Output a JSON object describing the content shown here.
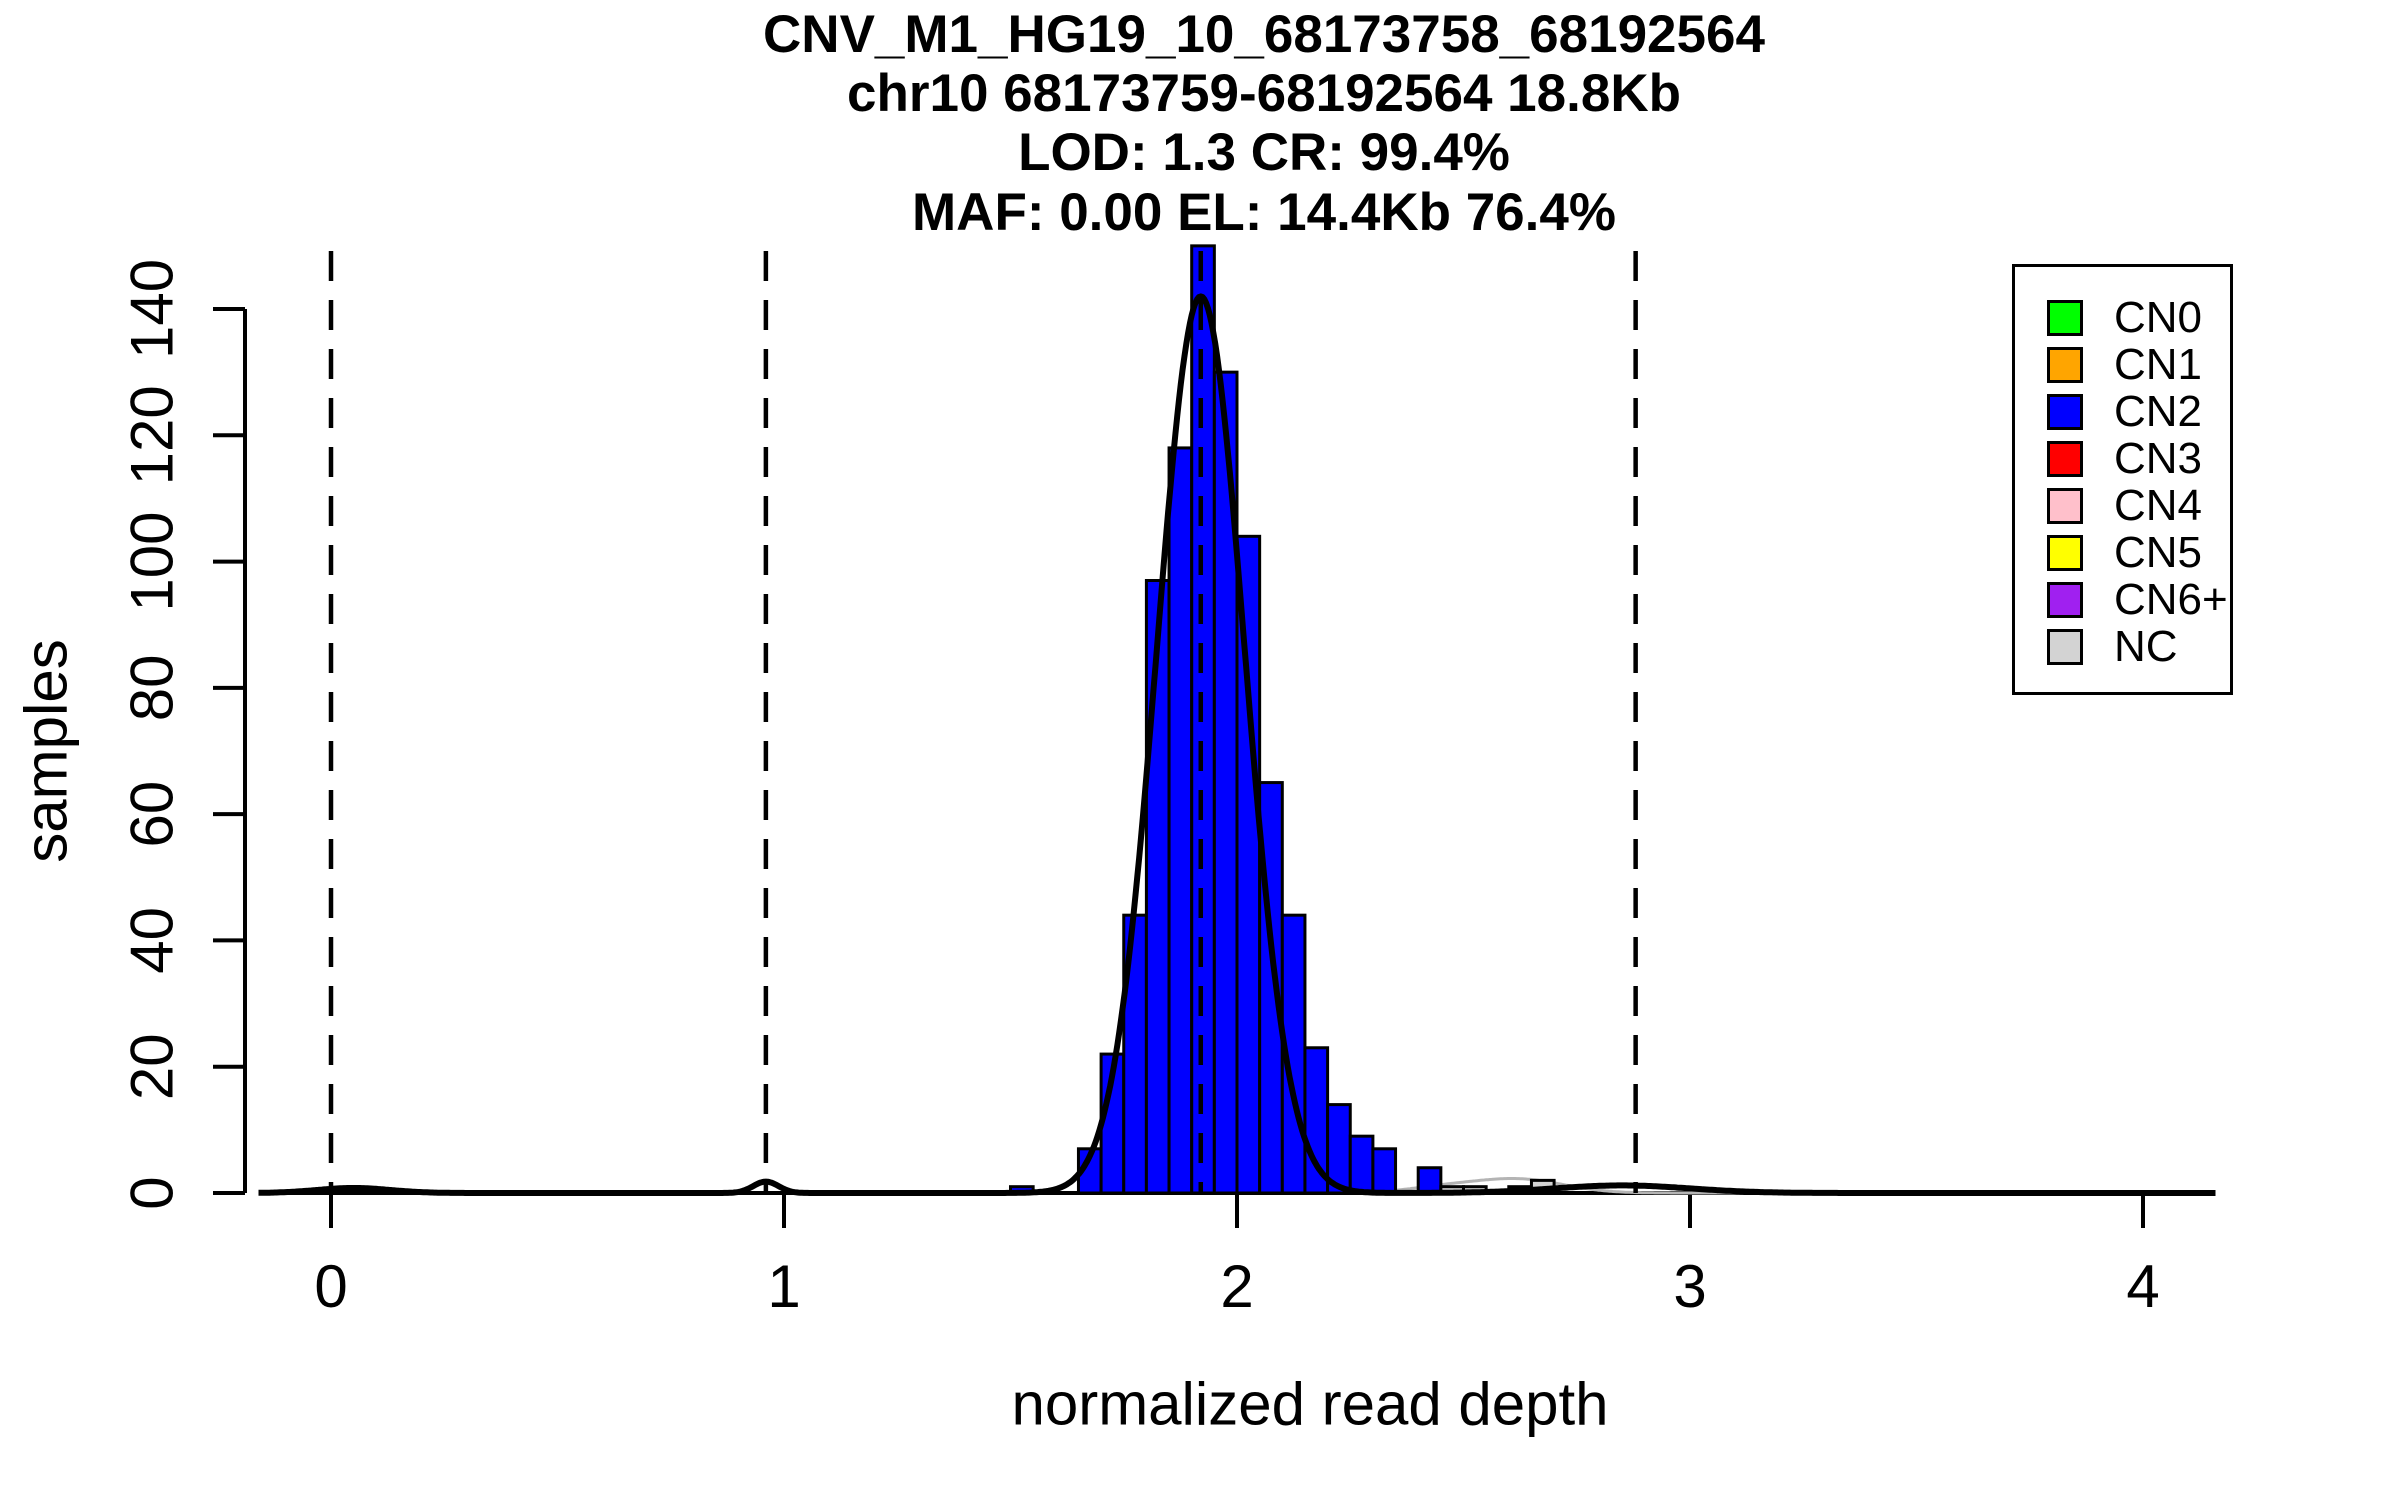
{
  "title": {
    "line1": "CNV_M1_HG19_10_68173758_68192564",
    "line2": "chr10 68173759-68192564 18.8Kb",
    "line3": "LOD: 1.3 CR: 99.4%",
    "line4": "MAF: 0.00 EL: 14.4Kb 76.4%"
  },
  "axes": {
    "x_label": "normalized read depth",
    "y_label": "samples",
    "x_tick_labels": [
      "0",
      "1",
      "2",
      "3",
      "4"
    ],
    "y_tick_labels": [
      "0",
      "20",
      "40",
      "60",
      "80",
      "100",
      "120",
      "140"
    ]
  },
  "legend": {
    "items": [
      {
        "label": "CN0",
        "color": "#00FF00"
      },
      {
        "label": "CN1",
        "color": "#FFA500"
      },
      {
        "label": "CN2",
        "color": "#0000FF"
      },
      {
        "label": "CN3",
        "color": "#FF0000"
      },
      {
        "label": "CN4",
        "color": "#FFC0CB"
      },
      {
        "label": "CN5",
        "color": "#FFFF00"
      },
      {
        "label": "CN6+",
        "color": "#A020F0"
      },
      {
        "label": "NC",
        "color": "#D3D3D3"
      }
    ]
  },
  "chart_data": {
    "type": "bar",
    "subtype": "histogram-with-density-fit",
    "title": "CNV_M1_HG19_10_68173758_68192564 / chr10 68173759-68192564 18.8Kb / LOD: 1.3 CR: 99.4% / MAF: 0.00 EL: 14.4Kb 76.4%",
    "xlabel": "normalized read depth",
    "ylabel": "samples",
    "xlim": [
      -0.16,
      4.16
    ],
    "ylim": [
      0,
      150
    ],
    "x_ticks": [
      0,
      1,
      2,
      3,
      4
    ],
    "y_ticks": [
      0,
      20,
      40,
      60,
      80,
      100,
      120,
      140
    ],
    "grid": false,
    "legend_position": "top-right",
    "bin_width": 0.05,
    "bars": [
      {
        "from": 1.5,
        "to": 1.55,
        "count": 1,
        "cn": "CN2"
      },
      {
        "from": 1.65,
        "to": 1.7,
        "count": 7,
        "cn": "CN2"
      },
      {
        "from": 1.7,
        "to": 1.75,
        "count": 22,
        "cn": "CN2"
      },
      {
        "from": 1.75,
        "to": 1.8,
        "count": 44,
        "cn": "CN2"
      },
      {
        "from": 1.8,
        "to": 1.85,
        "count": 97,
        "cn": "CN2"
      },
      {
        "from": 1.85,
        "to": 1.9,
        "count": 118,
        "cn": "CN2"
      },
      {
        "from": 1.9,
        "to": 1.95,
        "count": 150,
        "cn": "CN2"
      },
      {
        "from": 1.95,
        "to": 2.0,
        "count": 130,
        "cn": "CN2"
      },
      {
        "from": 2.0,
        "to": 2.05,
        "count": 104,
        "cn": "CN2"
      },
      {
        "from": 2.05,
        "to": 2.1,
        "count": 65,
        "cn": "CN2"
      },
      {
        "from": 2.1,
        "to": 2.15,
        "count": 44,
        "cn": "CN2"
      },
      {
        "from": 2.15,
        "to": 2.2,
        "count": 23,
        "cn": "CN2"
      },
      {
        "from": 2.2,
        "to": 2.25,
        "count": 14,
        "cn": "CN2"
      },
      {
        "from": 2.25,
        "to": 2.3,
        "count": 9,
        "cn": "CN2"
      },
      {
        "from": 2.3,
        "to": 2.35,
        "count": 7,
        "cn": "CN2"
      },
      {
        "from": 2.4,
        "to": 2.45,
        "count": 4,
        "cn": "CN2"
      },
      {
        "from": 2.45,
        "to": 2.5,
        "count": 1,
        "cn": "NC"
      },
      {
        "from": 2.5,
        "to": 2.55,
        "count": 1,
        "cn": "NC"
      },
      {
        "from": 2.6,
        "to": 2.65,
        "count": 1,
        "cn": "NC"
      },
      {
        "from": 2.65,
        "to": 2.7,
        "count": 2,
        "cn": "NC"
      }
    ],
    "cluster_mean_lines_x": [
      0,
      0.96,
      1.92,
      2.88
    ],
    "fit_curve": {
      "color": "#000000",
      "peak_x": 1.92,
      "peak_y": 142,
      "components": [
        {
          "mu": 1.92,
          "sigma": 0.097,
          "amp": 142
        },
        {
          "mu": 0.96,
          "sigma": 0.028,
          "amp": 1.8
        },
        {
          "mu": 0.05,
          "sigma": 0.08,
          "amp": 0.8
        },
        {
          "mu": 2.85,
          "sigma": 0.15,
          "amp": 1.2
        }
      ]
    },
    "nc_curve": {
      "color": "#B4B4B4",
      "components": [
        {
          "mu": 2.62,
          "sigma": 0.1,
          "amp": 2.2
        },
        {
          "mu": 2.45,
          "sigma": 0.08,
          "amp": 0.8
        }
      ]
    }
  }
}
